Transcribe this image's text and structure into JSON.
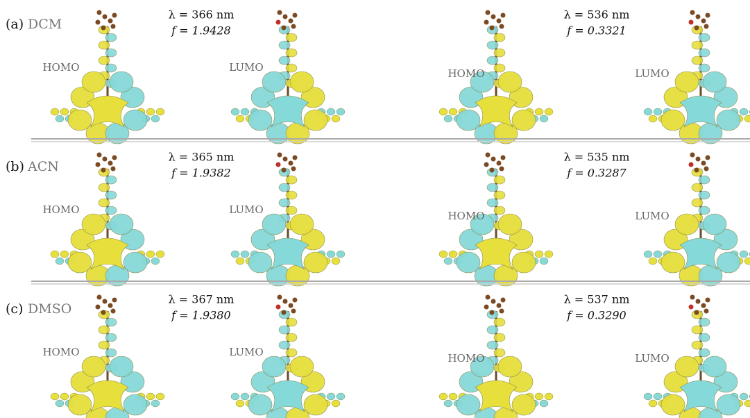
{
  "panels": [
    {
      "label": "(a)",
      "solvent": "DCM",
      "orbitals": [
        "HOMO",
        "LUMO",
        "HOMO",
        "LUMO"
      ],
      "transitions": [
        {
          "wavelength": "λ = 366 nm",
          "strength": "f = 1.9428"
        },
        {
          "wavelength": "λ = 536 nm",
          "strength": "f = 0.3321"
        }
      ]
    },
    {
      "label": "(b)",
      "solvent": "ACN",
      "orbitals": [
        "HOMO",
        "LUMO",
        "HOMO",
        "LUMO"
      ],
      "transitions": [
        {
          "wavelength": "λ = 365 nm",
          "strength": "f = 1.9382"
        },
        {
          "wavelength": "λ = 535 nm",
          "strength": "f = 0.3287"
        }
      ]
    },
    {
      "label": "(c)",
      "solvent": "DMSO",
      "orbitals": [
        "HOMO",
        "LUMO",
        "HOMO",
        "LUMO"
      ],
      "transitions": [
        {
          "wavelength": "λ = 367 nm",
          "strength": "f = 1.9380"
        },
        {
          "wavelength": "λ = 537 nm",
          "strength": "f = 0.3290"
        }
      ]
    }
  ]
}
